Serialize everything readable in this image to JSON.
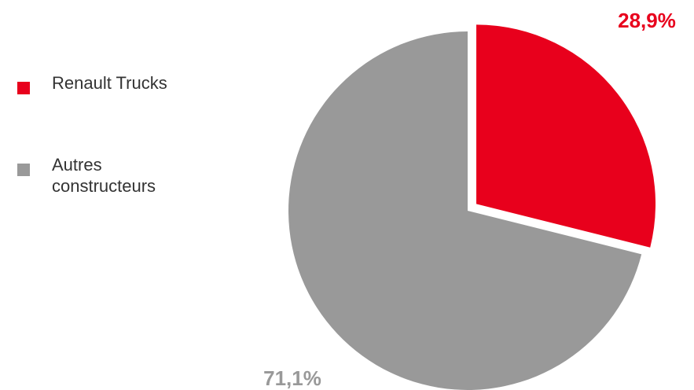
{
  "chart_data": {
    "type": "pie",
    "title": "",
    "legend_position": "left",
    "slices": [
      {
        "name": "Renault Trucks",
        "value": 28.9,
        "label": "28,9%",
        "color": "#e8001c",
        "exploded": true
      },
      {
        "name": "Autres\nconstructeurs",
        "value": 71.1,
        "label": "71,1%",
        "color": "#999999",
        "exploded": false
      }
    ],
    "label_colors": [
      "#e8001c",
      "#999999"
    ]
  }
}
